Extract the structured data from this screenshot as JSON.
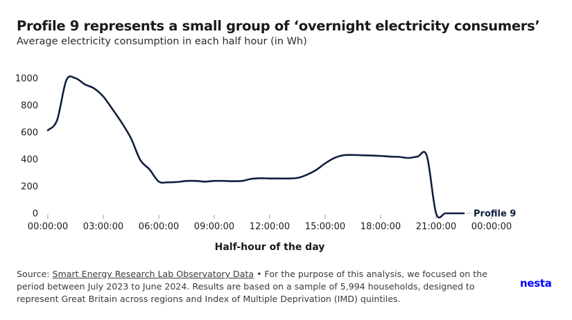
{
  "title": "Profile 9 represents a small group of ‘overnight electricity consumers’",
  "subtitle": "Average electricity consumption in each half hour (in Wh)",
  "footer": {
    "source_prefix": "Source: ",
    "source_link": "Smart Energy Research Lab Observatory Data",
    "note": " • For the purpose of this analysis, we focused on the period between July 2023 to June 2024. Results are based on a sample of 5,994 households, designed to represent Great Britain across regions and Index of Multiple Deprivation (IMD) quintiles."
  },
  "logo": "nesta",
  "colors": {
    "line": "#0f1f3d",
    "tick": "#999999",
    "logo": "#0000ff"
  },
  "chart_data": {
    "type": "line",
    "xlabel": "Half-hour of the day",
    "ylabel": "",
    "ylim": [
      0,
      1000
    ],
    "yticks": [
      0,
      200,
      400,
      600,
      800,
      1000
    ],
    "xticks": [
      "00:00:00",
      "03:00:00",
      "06:00:00",
      "09:00:00",
      "12:00:00",
      "15:00:00",
      "18:00:00",
      "21:00:00",
      "00:00:00"
    ],
    "x_unit": "hours of day (0 to 24)",
    "grid": false,
    "series": [
      {
        "name": "Profile 9",
        "x": [
          0,
          0.5,
          1,
          1.5,
          2,
          2.5,
          3,
          3.5,
          4,
          4.5,
          5,
          5.5,
          6,
          6.5,
          7,
          7.5,
          8,
          8.5,
          9,
          9.5,
          10,
          10.5,
          11,
          11.5,
          12,
          12.5,
          13,
          13.5,
          14,
          14.5,
          15,
          15.5,
          16,
          16.5,
          17,
          17.5,
          18,
          18.5,
          19,
          19.5,
          20,
          20.5,
          21,
          21.5,
          22,
          22.5,
          23,
          23.5
        ],
        "values": [
          615,
          690,
          985,
          1000,
          955,
          925,
          865,
          770,
          670,
          555,
          395,
          325,
          235,
          230,
          232,
          240,
          240,
          235,
          240,
          240,
          238,
          240,
          255,
          260,
          258,
          258,
          258,
          262,
          285,
          320,
          370,
          410,
          430,
          432,
          430,
          428,
          425,
          420,
          418,
          410,
          420,
          425,
          0,
          0,
          0,
          0,
          0,
          0
        ]
      }
    ]
  }
}
